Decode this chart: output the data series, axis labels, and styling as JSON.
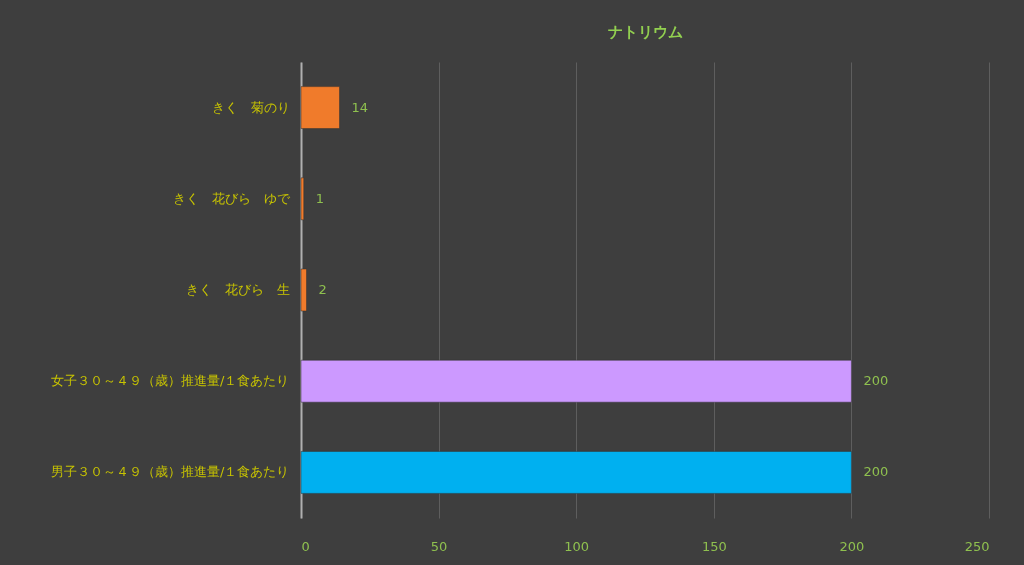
{
  "chart_data": {
    "type": "bar",
    "orientation": "horizontal",
    "title": "ナトリウム",
    "categories": [
      "きく　菊のり",
      "きく　花びら　ゆで",
      "きく　花びら　生",
      "女子３０～４９（歳）推進量/１食あたり",
      "男子３０～４９（歳）推進量/１食あたり"
    ],
    "values": [
      14,
      1,
      2,
      200,
      200
    ],
    "colors": [
      "#f07b2b",
      "#f07b2b",
      "#f07b2b",
      "#cc99ff",
      "#00b0f0"
    ],
    "xlim": [
      0,
      250
    ],
    "xticks": [
      0,
      50,
      100,
      150,
      200,
      250
    ],
    "grid": "x",
    "data_labels": true
  }
}
